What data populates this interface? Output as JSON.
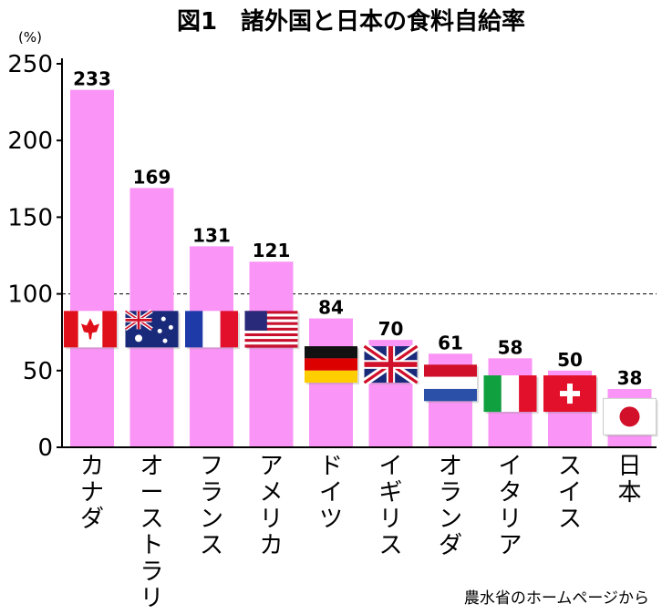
{
  "chart_data": {
    "type": "bar",
    "title": "図1　諸外国と日本の食料自給率",
    "ylabel": "(%)",
    "ylim": [
      0,
      250
    ],
    "yticks": [
      0,
      50,
      100,
      150,
      200,
      250
    ],
    "reference_line": 100,
    "bar_color": "#fa94f6",
    "categories": [
      "カナダ",
      "オーストラリア",
      "フランス",
      "アメリカ",
      "ドイツ",
      "イギリス",
      "オランダ",
      "イタリア",
      "スイス",
      "日本"
    ],
    "values": [
      233,
      169,
      131,
      121,
      84,
      70,
      61,
      58,
      50,
      38
    ],
    "value_labels": [
      "233",
      "169",
      "131",
      "121",
      "84",
      "70",
      "61",
      "58",
      "50",
      "38"
    ],
    "flags": [
      "canada-flag",
      "australia-flag",
      "france-flag",
      "usa-flag",
      "germany-flag",
      "uk-flag",
      "netherlands-flag",
      "italy-flag",
      "switzerland-flag",
      "japan-flag"
    ],
    "source": "農水省のホームページから"
  }
}
